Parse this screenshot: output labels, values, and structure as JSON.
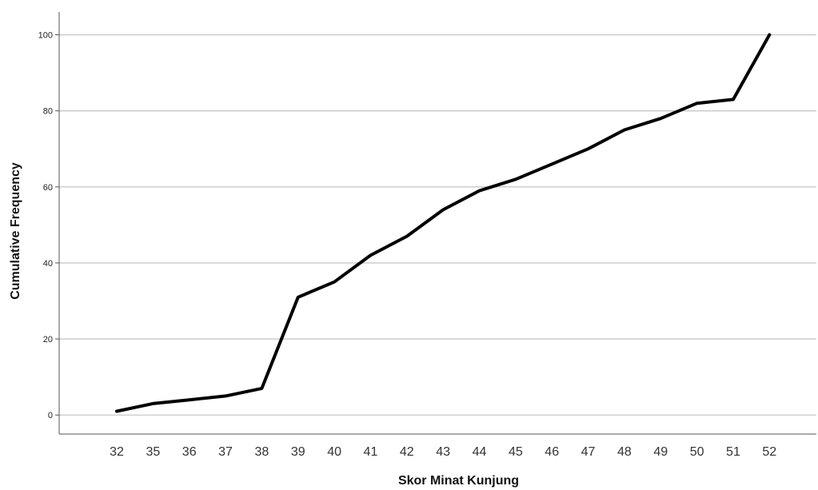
{
  "chart_data": {
    "type": "line",
    "title": "",
    "xlabel": "Skor Minat Kunjung",
    "ylabel": "Cumulative Frequency",
    "categories": [
      "32",
      "35",
      "36",
      "37",
      "38",
      "39",
      "40",
      "41",
      "42",
      "43",
      "44",
      "45",
      "46",
      "47",
      "48",
      "49",
      "50",
      "51",
      "52"
    ],
    "values": [
      1,
      3,
      4,
      5,
      7,
      31,
      35,
      42,
      47,
      54,
      59,
      62,
      66,
      70,
      75,
      78,
      82,
      83,
      100
    ],
    "ylim": [
      -5,
      106
    ],
    "yticks": [
      0,
      20,
      40,
      60,
      80,
      100
    ],
    "grid": true,
    "legend": "none",
    "line_color": "#000000",
    "grid_color": "#c8c8c8"
  }
}
